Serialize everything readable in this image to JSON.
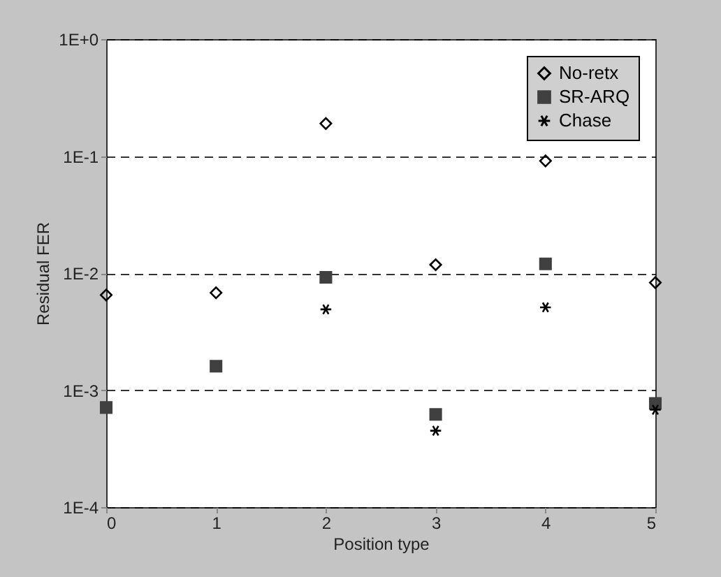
{
  "chart_data": {
    "type": "scatter",
    "xlabel": "Position type",
    "ylabel": "Residual FER",
    "x": [
      0,
      1,
      2,
      3,
      4,
      5
    ],
    "series": [
      {
        "name": "No-retx",
        "color": "#000000",
        "marker": "diamond",
        "values": [
          0.0065,
          0.0068,
          0.19,
          0.0118,
          0.091,
          0.0083
        ]
      },
      {
        "name": "SR-ARQ",
        "color": "#404040",
        "marker": "square",
        "values": [
          0.00071,
          0.0016,
          0.0092,
          0.00062,
          0.012,
          0.00077
        ]
      },
      {
        "name": "Chase",
        "color": "#000000",
        "marker": "cross",
        "values": [
          null,
          null,
          0.0049,
          0.00045,
          0.0051,
          0.00068
        ]
      }
    ],
    "xlim": [
      0,
      5
    ],
    "xticks": [
      0,
      1,
      2,
      3,
      4,
      5
    ],
    "ylim": [
      0.0001,
      1
    ],
    "log": "y",
    "yticks": [
      {
        "value": 1,
        "label": "1E+0"
      },
      {
        "value": 0.1,
        "label": "1E-1"
      },
      {
        "value": 0.01,
        "label": "1E-2"
      },
      {
        "value": 0.001,
        "label": "1E-3"
      },
      {
        "value": 0.0001,
        "label": "1E-4"
      }
    ],
    "grid": "y",
    "line_style": "dashed",
    "legend": "top right"
  }
}
